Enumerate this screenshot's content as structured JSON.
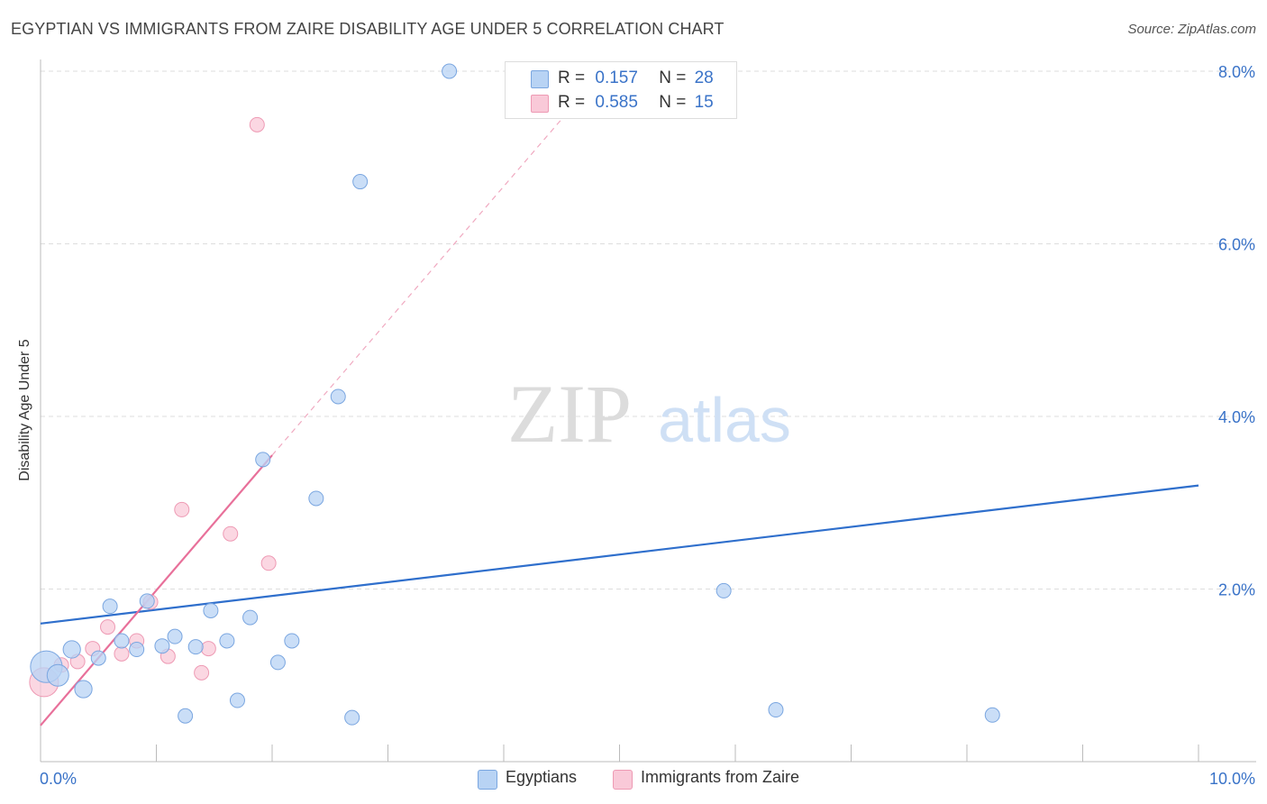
{
  "title": "EGYPTIAN VS IMMIGRANTS FROM ZAIRE DISABILITY AGE UNDER 5 CORRELATION CHART",
  "source": "Source: ZipAtlas.com",
  "watermark": {
    "zip": "ZIP",
    "atlas": "atlas"
  },
  "legend_top": {
    "rows": [
      {
        "r_label": "R =",
        "r_value": "0.157",
        "n_label": "N =",
        "n_value": "28"
      },
      {
        "r_label": "R =",
        "r_value": "0.585",
        "n_label": "N =",
        "n_value": "15"
      }
    ]
  },
  "legend_bottom": {
    "items": [
      "Egyptians",
      "Immigrants from Zaire"
    ]
  },
  "colors": {
    "egyptians_fill": "#b8d3f4",
    "egyptians_stroke": "#7aa6e0",
    "egyptians_line": "#2f6fcc",
    "zaire_fill": "#f9c9d8",
    "zaire_stroke": "#ee9ab4",
    "zaire_line": "#e8709a",
    "tick_label": "#3a73c8",
    "grid": "#dddddd"
  },
  "chart_data": {
    "type": "scatter",
    "title": "EGYPTIAN VS IMMIGRANTS FROM ZAIRE DISABILITY AGE UNDER 5 CORRELATION CHART",
    "xlabel": "",
    "ylabel": "Disability Age Under 5",
    "xlim": [
      0,
      10
    ],
    "ylim": [
      0,
      8.2
    ],
    "x_tick_labels": [
      {
        "x": 0,
        "label": "0.0%"
      },
      {
        "x": 10,
        "label": "10.0%"
      }
    ],
    "y_ticks": [
      {
        "y": 2,
        "label": "2.0%"
      },
      {
        "y": 4,
        "label": "4.0%"
      },
      {
        "y": 6,
        "label": "6.0%"
      },
      {
        "y": 8,
        "label": "8.0%"
      }
    ],
    "series": [
      {
        "name": "Egyptians",
        "R": 0.157,
        "N": 28,
        "points": [
          {
            "x": 0.05,
            "y": 1.1,
            "s": 2.2
          },
          {
            "x": 0.15,
            "y": 1.0,
            "s": 1.5
          },
          {
            "x": 0.27,
            "y": 1.3,
            "s": 1.2
          },
          {
            "x": 0.37,
            "y": 0.84,
            "s": 1.2
          },
          {
            "x": 0.5,
            "y": 1.2,
            "s": 1.0
          },
          {
            "x": 0.6,
            "y": 1.8,
            "s": 1.0
          },
          {
            "x": 0.7,
            "y": 1.4,
            "s": 1.0
          },
          {
            "x": 0.83,
            "y": 1.3,
            "s": 1.0
          },
          {
            "x": 0.92,
            "y": 1.86,
            "s": 1.0
          },
          {
            "x": 1.05,
            "y": 1.34,
            "s": 1.0
          },
          {
            "x": 1.16,
            "y": 1.45,
            "s": 1.0
          },
          {
            "x": 1.25,
            "y": 0.53,
            "s": 1.0
          },
          {
            "x": 1.34,
            "y": 1.33,
            "s": 1.0
          },
          {
            "x": 1.47,
            "y": 1.75,
            "s": 1.0
          },
          {
            "x": 1.61,
            "y": 1.4,
            "s": 1.0
          },
          {
            "x": 1.7,
            "y": 0.71,
            "s": 1.0
          },
          {
            "x": 1.81,
            "y": 1.67,
            "s": 1.0
          },
          {
            "x": 1.92,
            "y": 3.5,
            "s": 1.0
          },
          {
            "x": 2.05,
            "y": 1.15,
            "s": 1.0
          },
          {
            "x": 2.17,
            "y": 1.4,
            "s": 1.0
          },
          {
            "x": 2.38,
            "y": 3.05,
            "s": 1.0
          },
          {
            "x": 2.57,
            "y": 4.23,
            "s": 1.0
          },
          {
            "x": 2.69,
            "y": 0.51,
            "s": 1.0
          },
          {
            "x": 2.76,
            "y": 6.72,
            "s": 1.0
          },
          {
            "x": 3.53,
            "y": 8.0,
            "s": 1.0
          },
          {
            "x": 5.9,
            "y": 1.98,
            "s": 1.0
          },
          {
            "x": 6.35,
            "y": 0.6,
            "s": 1.0
          },
          {
            "x": 8.22,
            "y": 0.54,
            "s": 1.0
          }
        ],
        "trend": {
          "x": [
            0,
            10
          ],
          "y": [
            1.6,
            3.2
          ]
        }
      },
      {
        "name": "Immigrants from Zaire",
        "R": 0.585,
        "N": 15,
        "points": [
          {
            "x": 0.03,
            "y": 0.92,
            "s": 2.0
          },
          {
            "x": 0.18,
            "y": 1.12,
            "s": 1.0
          },
          {
            "x": 0.32,
            "y": 1.16,
            "s": 1.0
          },
          {
            "x": 0.45,
            "y": 1.31,
            "s": 1.0
          },
          {
            "x": 0.58,
            "y": 1.56,
            "s": 1.0
          },
          {
            "x": 0.7,
            "y": 1.25,
            "s": 1.0
          },
          {
            "x": 0.83,
            "y": 1.4,
            "s": 1.0
          },
          {
            "x": 0.95,
            "y": 1.85,
            "s": 1.0
          },
          {
            "x": 1.1,
            "y": 1.22,
            "s": 1.0
          },
          {
            "x": 1.22,
            "y": 2.92,
            "s": 1.0
          },
          {
            "x": 1.39,
            "y": 1.03,
            "s": 1.0
          },
          {
            "x": 1.45,
            "y": 1.31,
            "s": 1.0
          },
          {
            "x": 1.64,
            "y": 2.64,
            "s": 1.0
          },
          {
            "x": 1.87,
            "y": 7.38,
            "s": 1.0
          },
          {
            "x": 1.97,
            "y": 2.3,
            "s": 1.0
          }
        ],
        "trend": {
          "x": [
            0,
            2.0
          ],
          "y": [
            0.42,
            3.55
          ]
        },
        "trend_extension": {
          "x": [
            2.0,
            4.6
          ],
          "y": [
            3.55,
            7.6
          ]
        }
      }
    ]
  }
}
